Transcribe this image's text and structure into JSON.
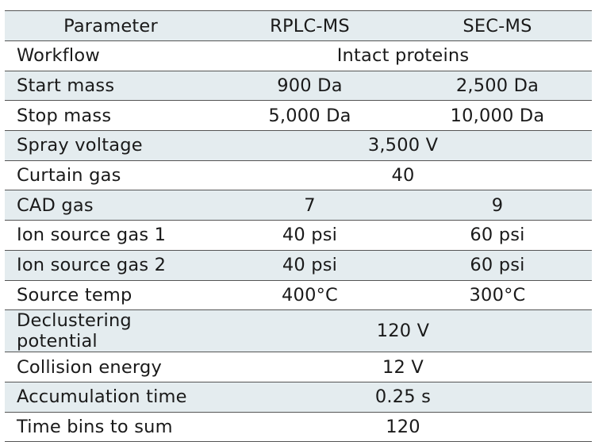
{
  "headers": {
    "parameter": "Parameter",
    "rplc": "RPLC-MS",
    "sec": "SEC-MS"
  },
  "rows": [
    {
      "param": "Workflow",
      "merged": "Intact proteins"
    },
    {
      "param": "Start mass",
      "rplc": "900 Da",
      "sec": "2,500 Da"
    },
    {
      "param": "Stop mass",
      "rplc": "5,000 Da",
      "sec": "10,000 Da"
    },
    {
      "param": "Spray voltage",
      "merged": "3,500 V"
    },
    {
      "param": "Curtain gas",
      "merged": "40"
    },
    {
      "param": "CAD gas",
      "rplc": "7",
      "sec": "9"
    },
    {
      "param": "Ion source gas 1",
      "rplc": "40 psi",
      "sec": "60 psi"
    },
    {
      "param": "Ion source gas 2",
      "rplc": "40 psi",
      "sec": "60 psi"
    },
    {
      "param": "Source temp",
      "rplc": "400°C",
      "sec": "300°C"
    },
    {
      "param": "Declustering potential",
      "merged": "120 V"
    },
    {
      "param": "Collision energy",
      "merged": "12 V"
    },
    {
      "param": "Accumulation time",
      "merged": "0.25 s"
    },
    {
      "param": "Time bins to sum",
      "merged": "120"
    }
  ]
}
